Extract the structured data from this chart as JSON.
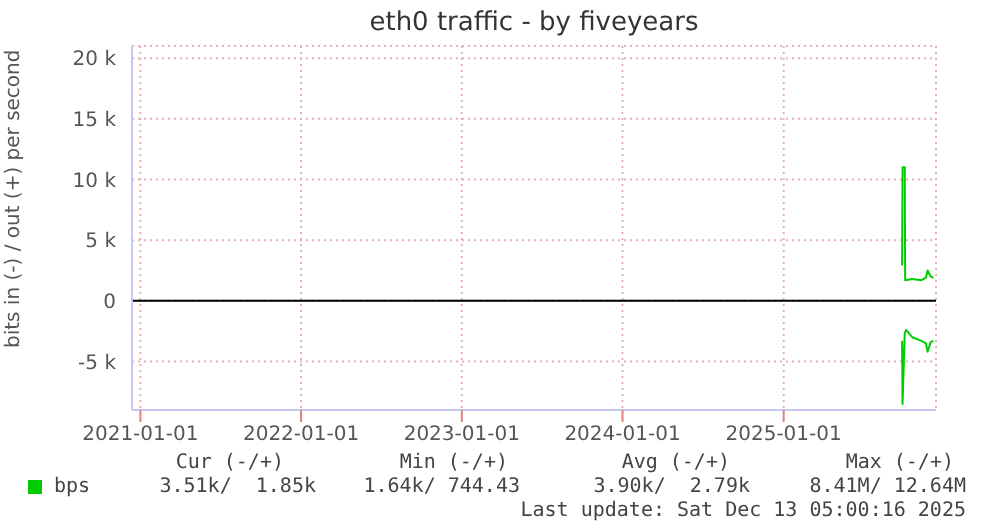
{
  "chart_data": {
    "type": "line",
    "title": "eth0 traffic - by fiveyears",
    "ylabel": "bits in (-) / out (+) per second",
    "xlim": [
      "2020-12-13",
      "2025-12-13"
    ],
    "xticks": [
      "2021-01-01",
      "2022-01-01",
      "2023-01-01",
      "2024-01-01",
      "2025-01-01"
    ],
    "ylim": [
      -9000,
      21000
    ],
    "yticks": [
      {
        "value": -5000,
        "label": "-5 k"
      },
      0,
      {
        "value": 5000,
        "label": "5 k"
      },
      {
        "value": 10000,
        "label": "10 k"
      },
      {
        "value": 15000,
        "label": "15 k"
      },
      {
        "value": 20000,
        "label": "20 k"
      }
    ],
    "grid": true,
    "legend": "bottom",
    "marker": "none",
    "series": [
      {
        "name": "bps",
        "color": "#00cc00",
        "x": [
          "2025-09-27",
          "2025-09-28",
          "2025-10-03",
          "2025-10-04",
          "2025-10-20",
          "2025-11-10",
          "2025-11-20",
          "2025-11-24",
          "2025-12-01",
          "2025-12-07"
        ],
        "values": [
          2900,
          11000,
          11000,
          1700,
          1800,
          1700,
          1900,
          2500,
          2000,
          1900
        ]
      },
      {
        "color": "#00cc00",
        "x": [
          "2025-09-27",
          "2025-09-28",
          "2025-10-03",
          "2025-10-06",
          "2025-10-20",
          "2025-11-10",
          "2025-11-20",
          "2025-11-24",
          "2025-12-01",
          "2025-12-07"
        ],
        "values": [
          -3300,
          -8500,
          -2700,
          -2400,
          -3000,
          -3300,
          -3500,
          -4200,
          -3400,
          -3300
        ]
      }
    ],
    "ref_lines": [
      {
        "axis": "y",
        "value": 0,
        "color": "#000000"
      }
    ],
    "annotations": [
      "Cur (-/+)",
      "Min (-/+)",
      "Avg (-/+)",
      "Max (-/+)",
      "3.51k/  1.85k",
      "1.64k/ 744.43",
      "3.90k/  2.79k",
      "8.41M/ 12.64M",
      "Last update: Sat Dec 13 05:00:16 2025"
    ]
  }
}
